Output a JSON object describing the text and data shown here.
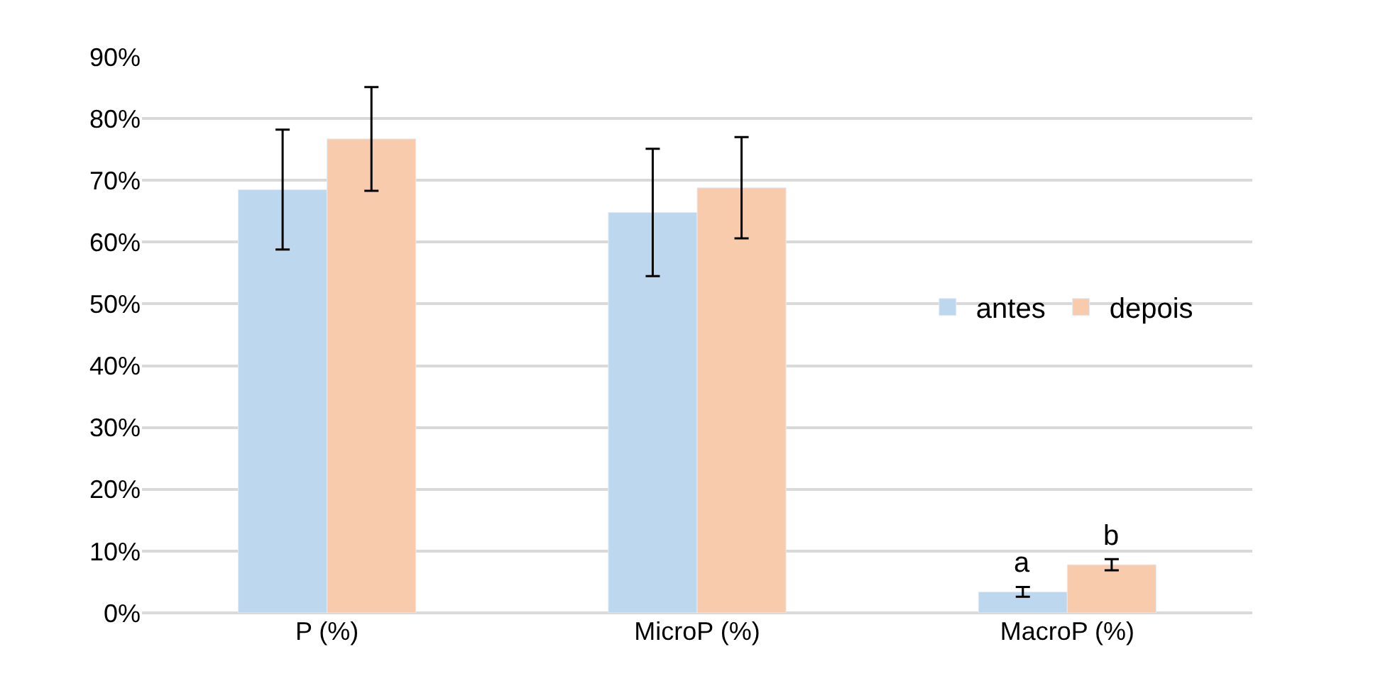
{
  "chart_data": {
    "type": "bar",
    "categories": [
      "P (%)",
      "MicroP (%)",
      "MacroP (%)"
    ],
    "series": [
      {
        "name": "antes",
        "color": "#bdd7ee",
        "values": [
          68.5,
          64.8,
          3.4
        ],
        "errors": [
          9.7,
          10.3,
          0.8
        ]
      },
      {
        "name": "depois",
        "color": "#f8cbad",
        "values": [
          76.7,
          68.8,
          7.8
        ],
        "errors": [
          8.4,
          8.2,
          0.9
        ]
      }
    ],
    "ylim": [
      0,
      90
    ],
    "yticks": [
      {
        "value": 0,
        "label": "0%"
      },
      {
        "value": 10,
        "label": "10%"
      },
      {
        "value": 20,
        "label": "20%"
      },
      {
        "value": 30,
        "label": "30%"
      },
      {
        "value": 40,
        "label": "40%"
      },
      {
        "value": 50,
        "label": "50%"
      },
      {
        "value": 60,
        "label": "60%"
      },
      {
        "value": 70,
        "label": "70%"
      },
      {
        "value": 80,
        "label": "80%"
      },
      {
        "value": 90,
        "label": "90%"
      }
    ],
    "annotations": [
      {
        "text": "a",
        "x": "MacroP (%)",
        "y": 4.3
      },
      {
        "text": "b",
        "x": "MacroP (%)",
        "y": 8.7
      }
    ],
    "grid": "y",
    "legend": "right"
  }
}
